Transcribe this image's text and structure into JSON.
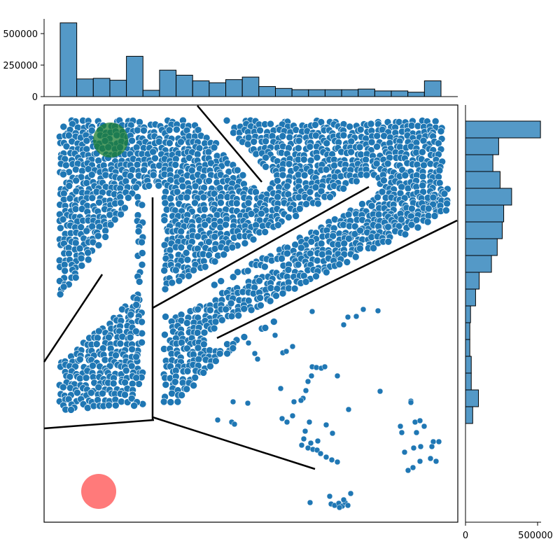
{
  "chart_data": [
    {
      "type": "scatter",
      "panel": "joint",
      "description_of_marks": "dense cloud of blue points filling the open corridors of a maze; sparse points in the lower-right open area",
      "colors": {
        "points": "#1f77b4",
        "point_edge": "#ffffff",
        "goal": "#1e7d32",
        "start": "#ff4d4d",
        "walls": "#000000"
      },
      "markers": [
        {
          "name": "goal-circle",
          "x": 158,
          "y": 200,
          "r": 25,
          "color": "#1e7d32"
        },
        {
          "name": "start-circle",
          "x": 141,
          "y": 702,
          "r": 25,
          "color": "#ff4d4d"
        }
      ],
      "walls": [
        [
          [
            282,
            151
          ],
          [
            374,
            260
          ]
        ],
        [
          [
            527,
            267
          ],
          [
            218,
            440
          ]
        ],
        [
          [
            653,
            315
          ],
          [
            310,
            483
          ]
        ],
        [
          [
            218,
            282
          ],
          [
            218,
            600
          ]
        ],
        [
          [
            146,
            392
          ],
          [
            63,
            517
          ]
        ],
        [
          [
            63,
            612
          ],
          [
            220,
            600
          ]
        ],
        [
          [
            218,
            596
          ],
          [
            450,
            670
          ]
        ]
      ],
      "dense_regions": [
        {
          "poly": [
            [
              85,
              172
            ],
            [
              632,
              172
            ],
            [
              632,
              300
            ],
            [
              238,
              430
            ],
            [
              238,
              578
            ],
            [
              196,
              578
            ],
            [
              196,
              275
            ],
            [
              85,
              430
            ]
          ]
        }
      ],
      "sparse_points": [
        [
          446,
          445
        ],
        [
          519,
          442
        ],
        [
          540,
          444
        ],
        [
          497,
          453
        ],
        [
          509,
          452
        ],
        [
          491,
          464
        ],
        [
          393,
          479
        ],
        [
          418,
          495
        ],
        [
          404,
          504
        ],
        [
          409,
          502
        ],
        [
          355,
          490
        ],
        [
          364,
          505
        ],
        [
          368,
          513
        ],
        [
          446,
          524
        ],
        [
          452,
          525
        ],
        [
          459,
          526
        ],
        [
          464,
          524
        ],
        [
          445,
          537
        ],
        [
          482,
          537
        ],
        [
          440,
          545
        ],
        [
          401,
          555
        ],
        [
          437,
          558
        ],
        [
          543,
          559
        ],
        [
          433,
          569
        ],
        [
          420,
          574
        ],
        [
          430,
          572
        ],
        [
          498,
          585
        ],
        [
          587,
          573
        ],
        [
          587,
          575
        ],
        [
          354,
          576
        ],
        [
          333,
          574
        ],
        [
          311,
          600
        ],
        [
          331,
          603
        ],
        [
          335,
          606
        ],
        [
          403,
          598
        ],
        [
          410,
          603
        ],
        [
          442,
          603
        ],
        [
          418,
          594
        ],
        [
          466,
          607
        ],
        [
          436,
          616
        ],
        [
          475,
          619
        ],
        [
          434,
          627
        ],
        [
          454,
          630
        ],
        [
          444,
          633
        ],
        [
          431,
          636
        ],
        [
          440,
          640
        ],
        [
          447,
          642
        ],
        [
          453,
          643
        ],
        [
          458,
          648
        ],
        [
          466,
          653
        ],
        [
          474,
          657
        ],
        [
          482,
          660
        ],
        [
          572,
          609
        ],
        [
          593,
          603
        ],
        [
          600,
          601
        ],
        [
          606,
          609
        ],
        [
          574,
          618
        ],
        [
          595,
          618
        ],
        [
          591,
          640
        ],
        [
          601,
          638
        ],
        [
          619,
          631
        ],
        [
          627,
          631
        ],
        [
          617,
          638
        ],
        [
          578,
          646
        ],
        [
          600,
          659
        ],
        [
          615,
          655
        ],
        [
          623,
          659
        ],
        [
          583,
          672
        ],
        [
          590,
          668
        ],
        [
          443,
          718
        ],
        [
          471,
          709
        ],
        [
          501,
          705
        ],
        [
          473,
          720
        ],
        [
          478,
          722
        ],
        [
          484,
          719
        ],
        [
          489,
          723
        ],
        [
          493,
          718
        ],
        [
          497,
          722
        ],
        [
          485,
          725
        ],
        [
          491,
          714
        ]
      ]
    },
    {
      "type": "bar",
      "panel": "top-marginal-histogram",
      "orientation": "vertical",
      "yticks": [
        "0",
        "250000",
        "500000"
      ],
      "ylim": [
        0,
        600000
      ],
      "values": [
        585000,
        140000,
        145000,
        130000,
        320000,
        50000,
        210000,
        170000,
        125000,
        110000,
        135000,
        155000,
        80000,
        65000,
        55000,
        55000,
        55000,
        55000,
        60000,
        45000,
        45000,
        35000,
        125000
      ],
      "colors": {
        "bar": "#5499c7",
        "edge": "#000000"
      }
    },
    {
      "type": "bar",
      "panel": "right-marginal-histogram",
      "orientation": "horizontal",
      "xticks": [
        "0",
        "500000"
      ],
      "xlim": [
        0,
        530000
      ],
      "values": [
        520000,
        230000,
        190000,
        240000,
        320000,
        265000,
        255000,
        220000,
        180000,
        95000,
        70000,
        35000,
        30000,
        30000,
        40000,
        40000,
        90000,
        50000
      ],
      "colors": {
        "bar": "#5499c7",
        "edge": "#000000"
      }
    }
  ]
}
